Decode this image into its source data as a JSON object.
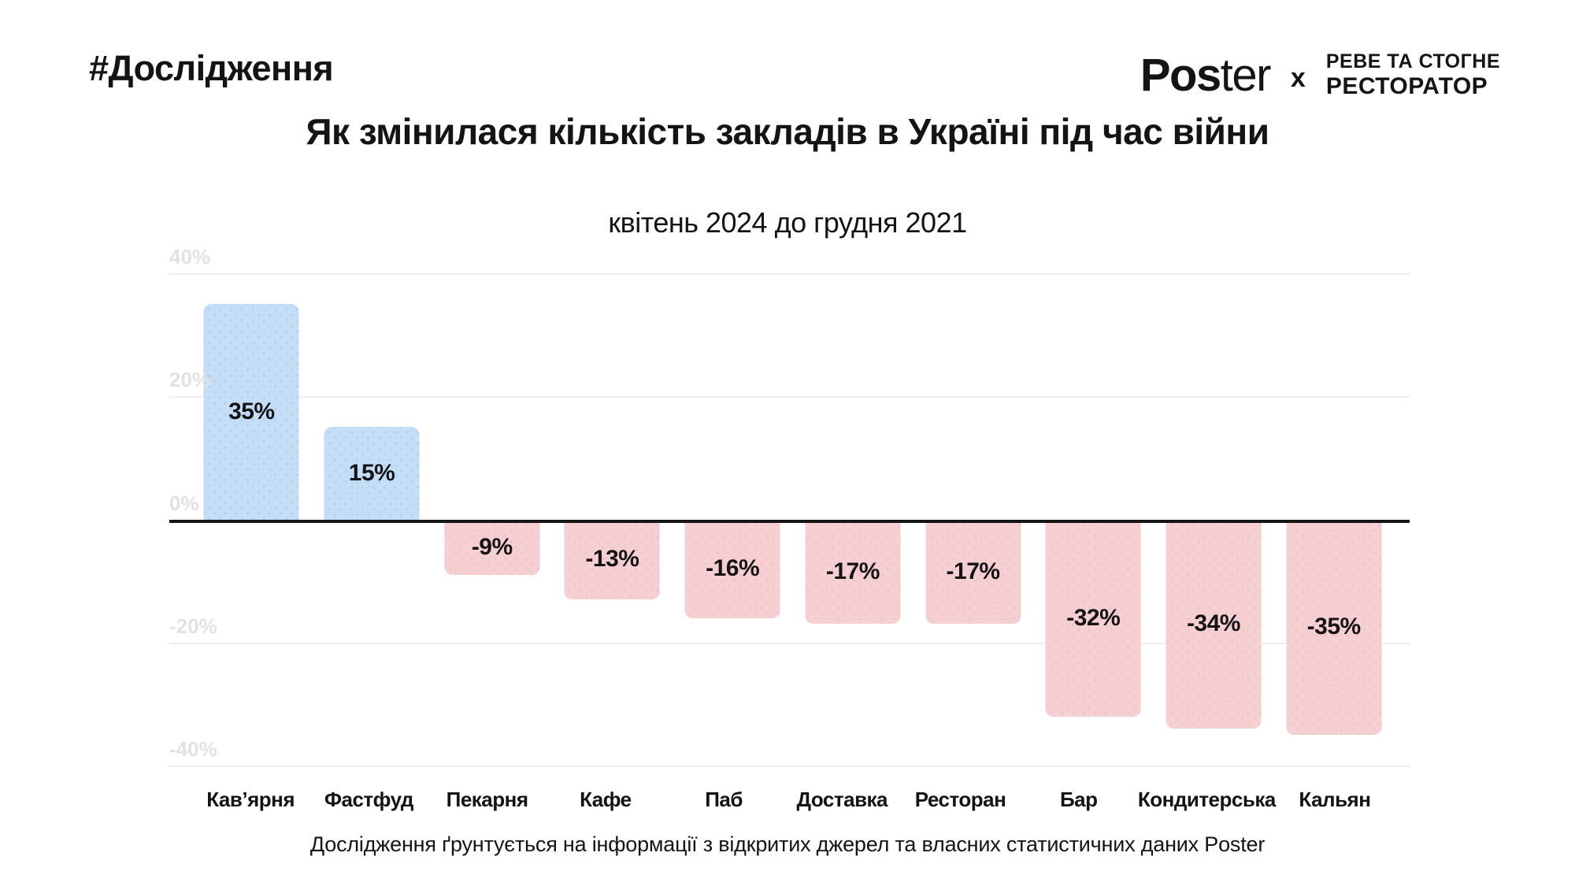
{
  "header": {
    "hashtag": "#Дослідження",
    "logo": {
      "poster_bold": "Pos",
      "poster_light": "ter",
      "separator": "x",
      "partner_line1": "РЕВЕ ТА СТОГНЕ",
      "partner_line2": "РЕСТОРАТОР"
    }
  },
  "title": "Як змінилася кількість закладів в Україні під час війни",
  "subtitle": "квітень 2024 до грудня 2021",
  "footer": "Дослідження ґрунтується на інформації з відкритих джерел та власних статистичних даних Poster",
  "chart_data": {
    "type": "bar",
    "categories": [
      "Кав’ярня",
      "Фастфуд",
      "Пекарня",
      "Кафе",
      "Паб",
      "Доставка",
      "Ресторан",
      "Бар",
      "Кондитерська",
      "Кальян"
    ],
    "values": [
      35,
      15,
      -9,
      -13,
      -16,
      -17,
      -17,
      -32,
      -34,
      -35
    ],
    "value_labels": [
      "35%",
      "15%",
      "-9%",
      "-13%",
      "-16%",
      "-17%",
      "-17%",
      "-32%",
      "-34%",
      "-35%"
    ],
    "title": "Як змінилася кількість закладів в Україні під час війни",
    "subtitle": "квітень 2024 до грудня 2021",
    "xlabel": "",
    "ylabel": "",
    "ylim": [
      -40,
      40
    ],
    "yticks": [
      40,
      20,
      0,
      -20,
      -40
    ],
    "ytick_labels": [
      "40%",
      "20%",
      "0%",
      "-20%",
      "-40%"
    ],
    "grid": true,
    "legend": false,
    "colors": {
      "positive_bar": "#c5def8",
      "negative_bar": "#f6cfd3",
      "gridline": "#ededed",
      "tick_label": "#e2e2e2",
      "zero_line": "#141414",
      "text": "#141414"
    }
  }
}
